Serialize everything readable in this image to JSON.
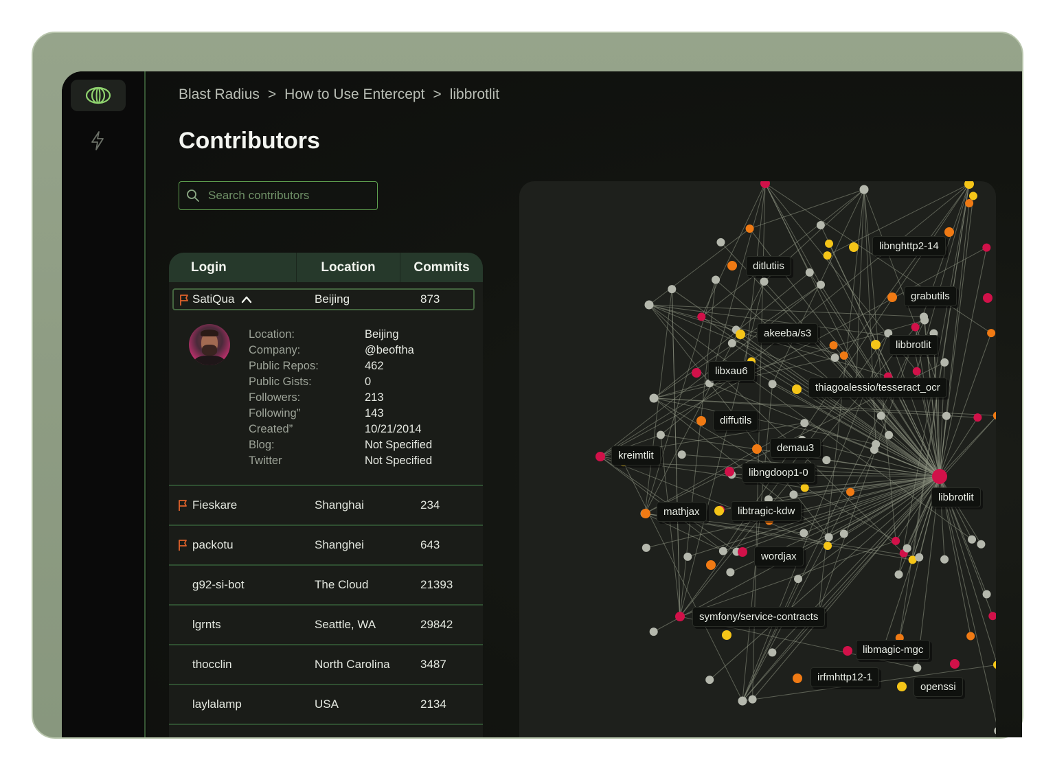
{
  "breadcrumb": [
    "Blast Radius",
    "How to Use Entercept",
    "libbrotlit"
  ],
  "breadcrumb_sep": ">",
  "page_title": "Contributors",
  "search": {
    "placeholder": "Search contributors"
  },
  "table": {
    "headers": {
      "login": "Login",
      "location": "Location",
      "commits": "Commits"
    },
    "selected": {
      "login": "SatiQua",
      "location": "Beijing",
      "commits": "873",
      "flagged": true,
      "details": {
        "keys": [
          "Location:",
          "Company:",
          "Public Repos:",
          "Public Gists:",
          "Followers:",
          "Following”",
          "Created”",
          "Blog:",
          "Twitter"
        ],
        "values": [
          "Beijing",
          "@beoftha",
          "462",
          "0",
          "213",
          "143",
          "10/21/2014",
          "Not Specified",
          "Not Specified"
        ]
      }
    },
    "rows": [
      {
        "login": "Fieskare",
        "location": "Shanghai",
        "commits": "234",
        "flagged": true
      },
      {
        "login": "packotu",
        "location": "Shanghei",
        "commits": "643",
        "flagged": true
      },
      {
        "login": "g92-si-bot",
        "location": "The Cloud",
        "commits": "21393",
        "flagged": false
      },
      {
        "login": "lgrnts",
        "location": "Seattle, WA",
        "commits": "29842",
        "flagged": false
      },
      {
        "login": "thocclin",
        "location": "North Carolina",
        "commits": "3487",
        "flagged": false
      },
      {
        "login": "laylalamp",
        "location": "USA",
        "commits": "2134",
        "flagged": false
      }
    ]
  },
  "graph": {
    "center_label": "libbrotlit",
    "labels": [
      "libnghttp2-14",
      "ditlutiis",
      "grabutils",
      "akeeba/s3",
      "libbrotlit",
      "libxau6",
      "thiagoalessio/tesseract_ocr",
      "diffutils",
      "demau3",
      "kreimtlit",
      "libngdoop1-0",
      "mathjax",
      "libtragic-kdw",
      "wordjax",
      "symfony/service-contracts",
      "libmagic-mgc",
      "irfmhttp12-1",
      "openssi"
    ]
  },
  "colors": {
    "accent": "#5fa150",
    "flag": "#e0622a",
    "node_gray": "#b5b8ad",
    "node_red": "#d11149",
    "node_orange": "#f07a14",
    "node_yellow": "#f5c518",
    "edge": "#8f9583"
  }
}
